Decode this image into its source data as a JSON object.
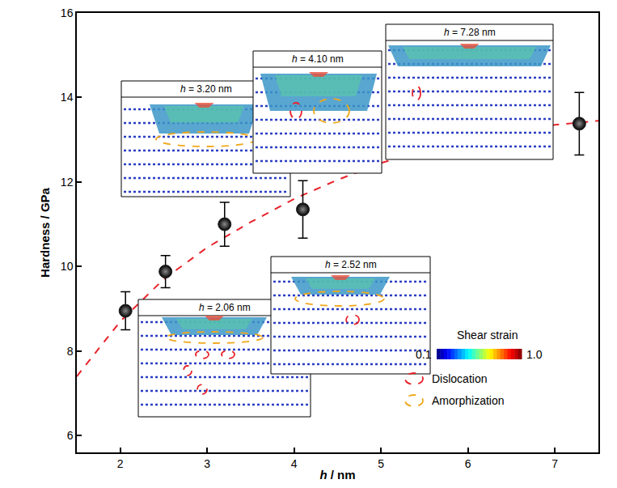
{
  "chart_data": {
    "type": "scatter",
    "x_label": "h / nm",
    "y_label": "Hardness / GPa",
    "xlim": [
      1.5,
      7.5
    ],
    "xticks": [
      2,
      3,
      4,
      5,
      6,
      7
    ],
    "ylim": [
      5.6,
      16
    ],
    "yticks": [
      6,
      8,
      10,
      12,
      14,
      16
    ],
    "grid": false,
    "series": [
      {
        "type": "line",
        "color": "#e8232a",
        "line_style": "dashed",
        "x": [
          1.5,
          2,
          2.5,
          3,
          3.5,
          4,
          4.5,
          5,
          5.5,
          6,
          6.5,
          7,
          7.5
        ],
        "values": [
          7.4,
          8.7,
          9.7,
          10.45,
          11.05,
          11.6,
          12.05,
          12.45,
          12.75,
          13.0,
          13.2,
          13.35,
          13.45
        ]
      },
      {
        "type": "scatter",
        "color": "#000000",
        "marker": "sphere",
        "x": [
          2.06,
          2.52,
          3.2,
          4.1,
          7.28
        ],
        "values": [
          8.95,
          9.88,
          11.0,
          11.35,
          13.38
        ],
        "errors": [
          0.45,
          0.38,
          0.52,
          0.68,
          0.74
        ]
      }
    ],
    "insets": [
      {
        "label": "h = 3.20 nm",
        "dislocation": false,
        "amorphization": true
      },
      {
        "label": "h = 4.10 nm",
        "dislocation": true,
        "amorphization": true
      },
      {
        "label": "h = 7.28 nm",
        "dislocation": true,
        "amorphization": false
      },
      {
        "label": "h = 2.06 nm",
        "dislocation": true,
        "amorphization": true
      },
      {
        "label": "h = 2.52 nm",
        "dislocation": true,
        "amorphization": true
      }
    ],
    "colorbar": {
      "title": "Shear strain",
      "range": [
        0.1,
        1.0
      ],
      "ticks": [
        0.1,
        {
          "value": 1.0,
          "label": "1.0"
        }
      ]
    },
    "annotations": [
      {
        "text": "Dislocation",
        "color": "#e8232a",
        "line_style": "dashed"
      },
      {
        "text": "Amorphization",
        "color": "#f0a81c",
        "line_style": "dashed"
      }
    ]
  }
}
